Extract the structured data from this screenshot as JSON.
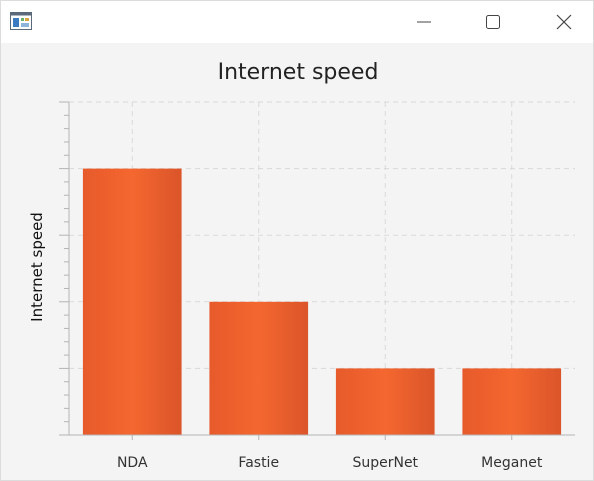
{
  "window": {
    "icon": "java-app-icon",
    "controls": {
      "minimize_icon": "minimize-icon",
      "maximize_icon": "maximize-icon",
      "close_icon": "close-icon"
    }
  },
  "chart_data": {
    "type": "bar",
    "title": "Internet speed",
    "xlabel": "",
    "ylabel": "Internet speed",
    "categories": [
      "NDA",
      "Fastie",
      "SuperNet",
      "Meganet"
    ],
    "values": [
      4,
      2,
      1,
      1
    ],
    "ylim": [
      0,
      5
    ],
    "y_major_step": 1,
    "y_minor_per_major": 5,
    "y_tick_labels_visible": false,
    "grid": true,
    "bar_color": "#ee5f2c",
    "bar_color_light": "#f4672f",
    "bar_color_dark": "#d9532a",
    "grid_color": "#d9d9d9",
    "axis_color": "#b4b4b4",
    "legend": "none"
  }
}
